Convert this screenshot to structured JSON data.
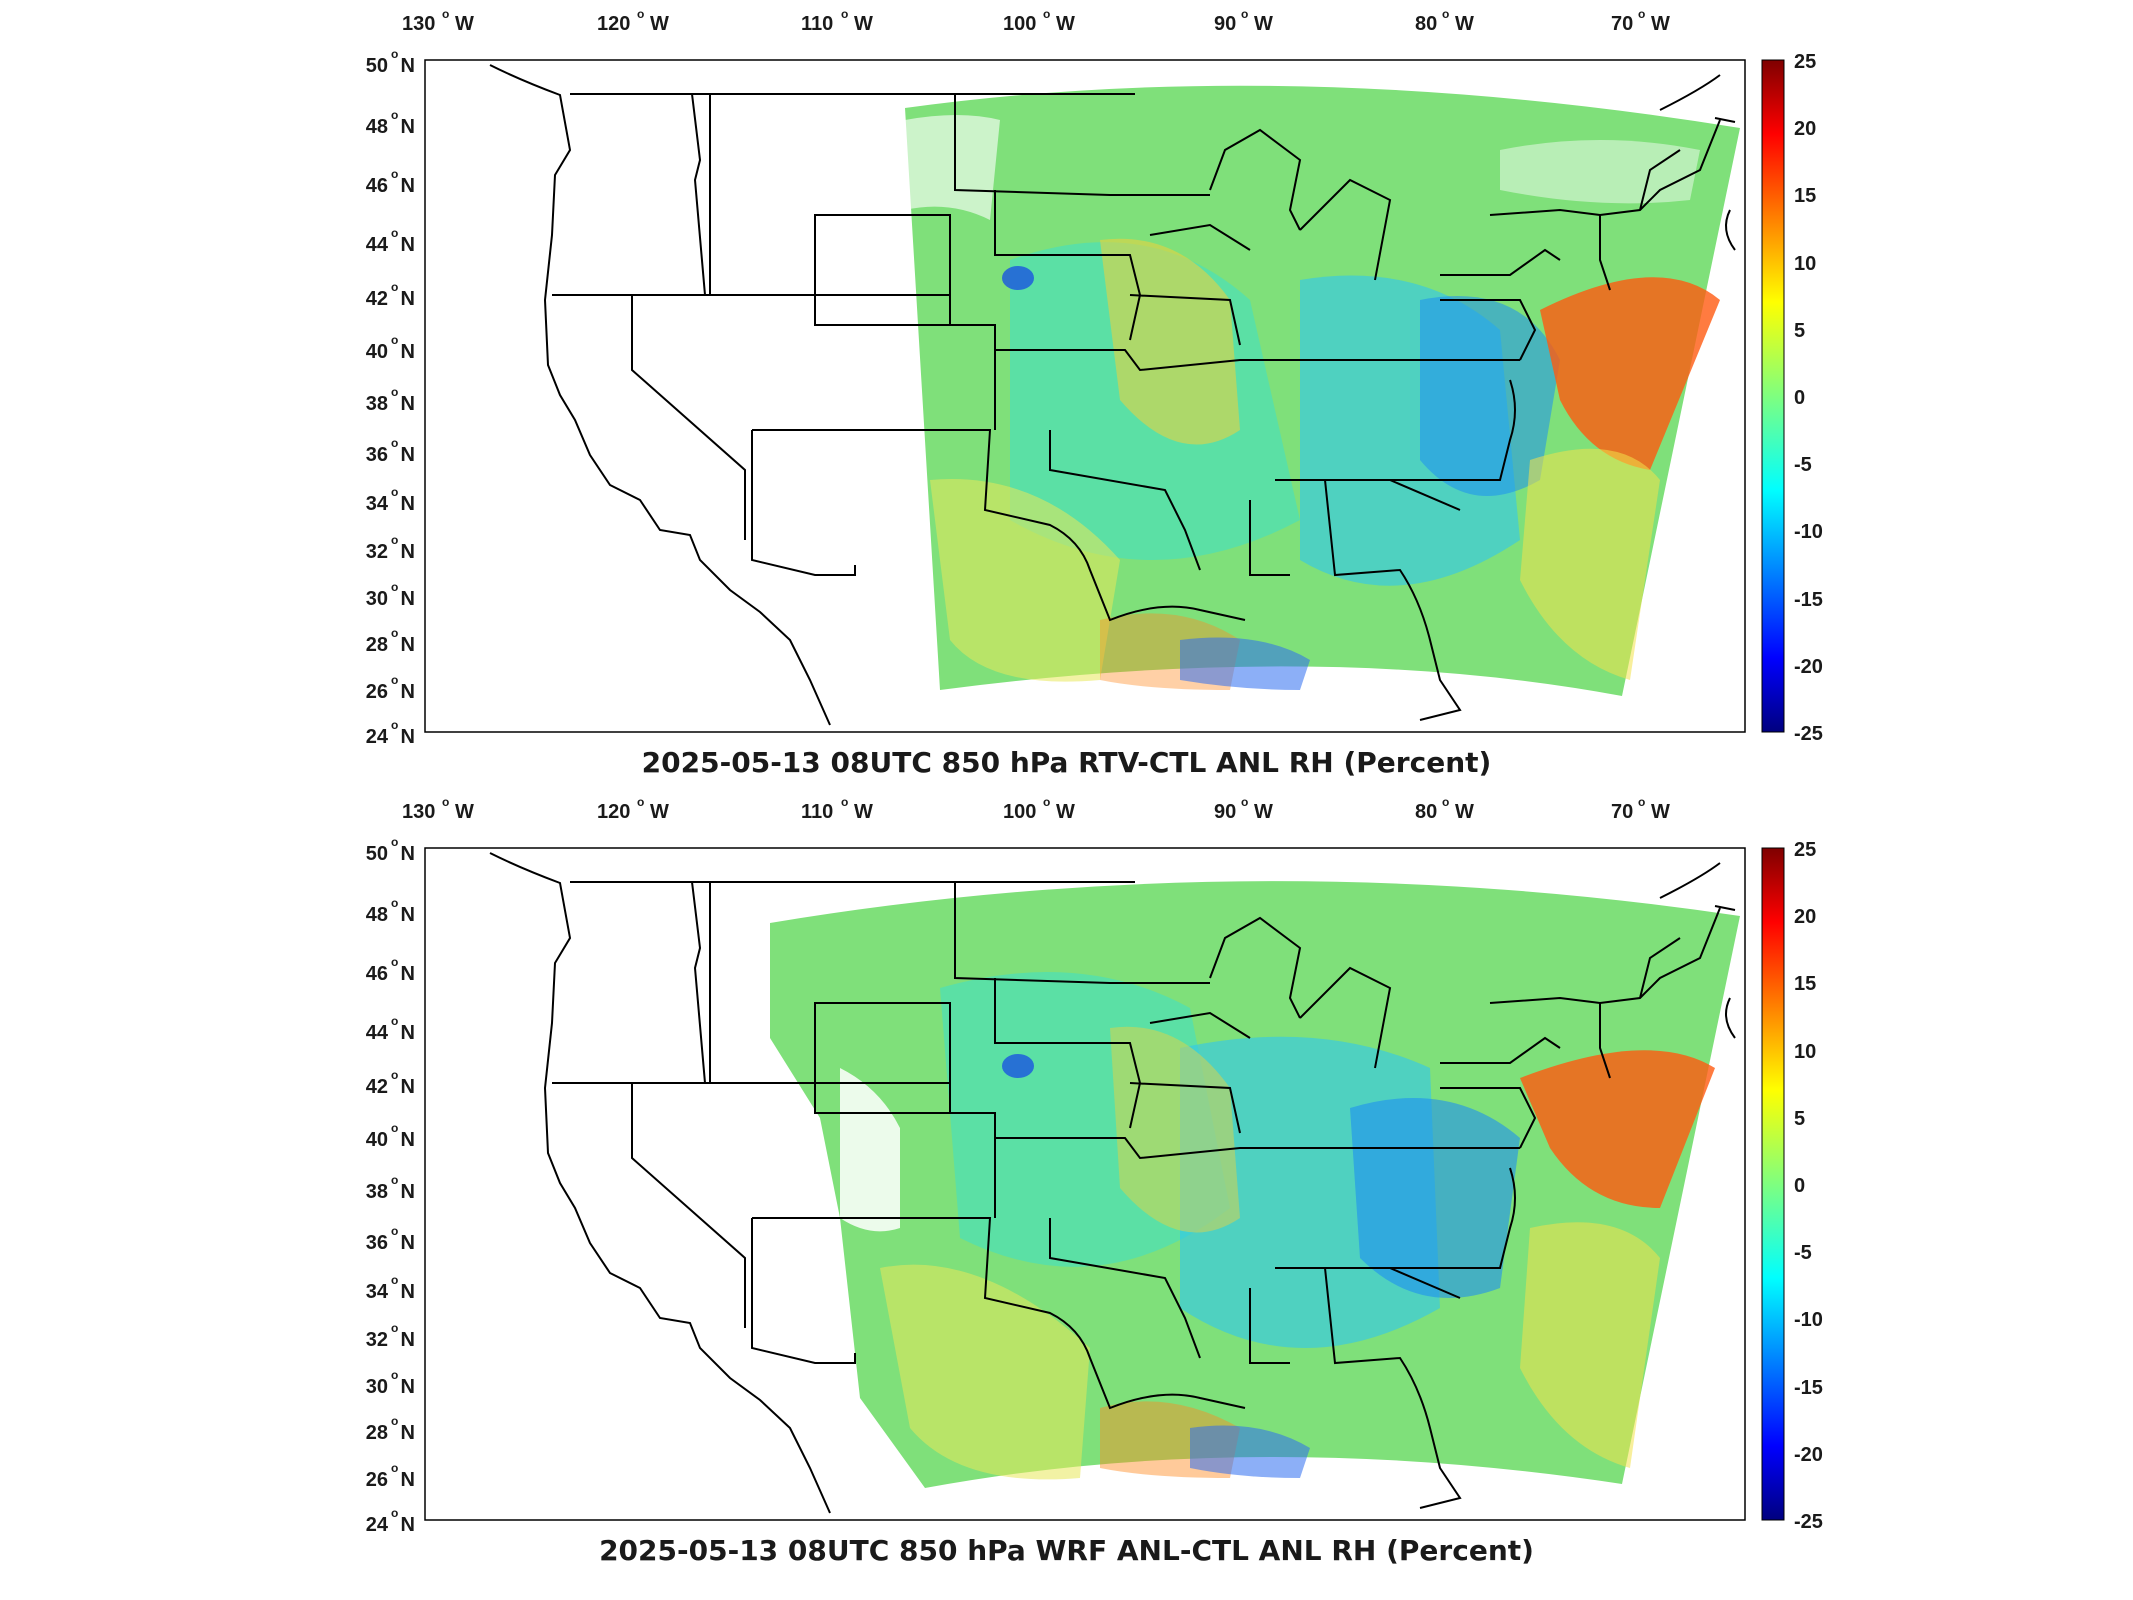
{
  "panels": [
    {
      "title": "2025-05-13 08UTC 850 hPa RTV-CTL ANL RH (Percent)",
      "lon_labels": [
        "130",
        "120",
        "110",
        "100",
        "90",
        "80",
        "70"
      ],
      "lat_labels": [
        "50",
        "48",
        "46",
        "44",
        "42",
        "40",
        "38",
        "36",
        "34",
        "32",
        "30",
        "28",
        "26",
        "24"
      ],
      "lon_suffix": "W",
      "lat_suffix": "N",
      "colorbar_ticks": [
        "25",
        "20",
        "15",
        "10",
        "5",
        "0",
        "-5",
        "-10",
        "-15",
        "-20",
        "-25"
      ]
    },
    {
      "title": "2025-05-13 08UTC 850 hPa WRF ANL-CTL ANL RH (Percent)",
      "lon_labels": [
        "130",
        "120",
        "110",
        "100",
        "90",
        "80",
        "70"
      ],
      "lat_labels": [
        "50",
        "48",
        "46",
        "44",
        "42",
        "40",
        "38",
        "36",
        "34",
        "32",
        "30",
        "28",
        "26",
        "24"
      ],
      "lon_suffix": "W",
      "lat_suffix": "N",
      "colorbar_ticks": [
        "25",
        "20",
        "15",
        "10",
        "5",
        "0",
        "-5",
        "-10",
        "-15",
        "-20",
        "-25"
      ]
    }
  ],
  "colors": {
    "neutral": "#7fe07a",
    "positive_peak": "#ff3a00",
    "negative_peak": "#0a2ad6",
    "colormap": "jet"
  },
  "map": {
    "projection": "lambert-conformal",
    "extent": {
      "lon_min": -130,
      "lon_max": -65,
      "lat_min": 24,
      "lat_max": 50
    },
    "colorbar_range": [
      -25,
      25
    ]
  }
}
